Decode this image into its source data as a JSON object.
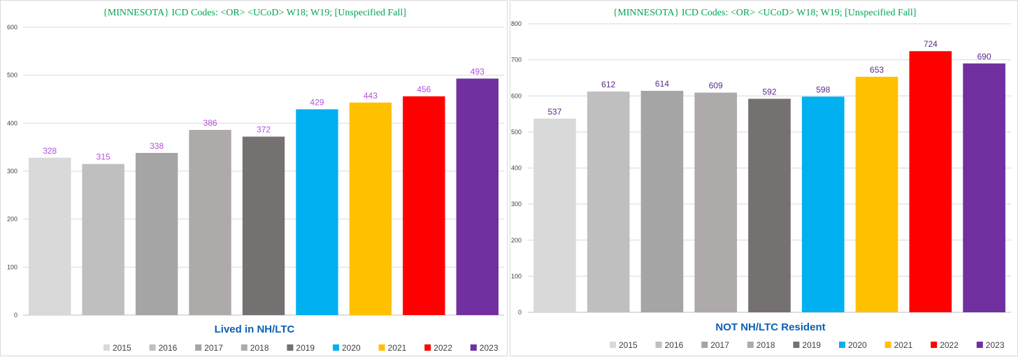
{
  "chart_data": [
    {
      "type": "bar",
      "supertitle": "{MINNESOTA}  ICD Codes: <OR> <UCoD> W18; W19;  [Unspecified  Fall]",
      "title": "Lived in NH/LTC",
      "categories": [
        "2015",
        "2016",
        "2017",
        "2018",
        "2019",
        "2020",
        "2021",
        "2022",
        "2023"
      ],
      "values": [
        328,
        315,
        338,
        386,
        372,
        429,
        443,
        456,
        493
      ],
      "ylim": [
        0,
        600
      ],
      "yticks": [
        0,
        100,
        200,
        300,
        400,
        500,
        600
      ],
      "grid": true,
      "legend_position": "bottom",
      "colors": [
        "#d9d9d9",
        "#bfbfbf",
        "#a5a5a5",
        "#aeaaaa",
        "#767171",
        "#00b0f0",
        "#ffc000",
        "#ff0000",
        "#7030a0"
      ],
      "label_color": "#b44fe0"
    },
    {
      "type": "bar",
      "supertitle": "{MINNESOTA}  ICD Codes: <OR> <UCoD> W18; W19;  [Unspecified  Fall]",
      "title": "NOT NH/LTC Resident",
      "categories": [
        "2015",
        "2016",
        "2017",
        "2018",
        "2019",
        "2020",
        "2021",
        "2022",
        "2023"
      ],
      "values": [
        537,
        612,
        614,
        609,
        592,
        598,
        653,
        724,
        690
      ],
      "ylim": [
        0,
        800
      ],
      "yticks": [
        0,
        100,
        200,
        300,
        400,
        500,
        600,
        700,
        800
      ],
      "grid": true,
      "legend_position": "bottom",
      "colors": [
        "#d9d9d9",
        "#bfbfbf",
        "#a5a5a5",
        "#aeaaaa",
        "#767171",
        "#00b0f0",
        "#ffc000",
        "#ff0000",
        "#7030a0"
      ],
      "label_color": "#5b2c8a"
    }
  ]
}
